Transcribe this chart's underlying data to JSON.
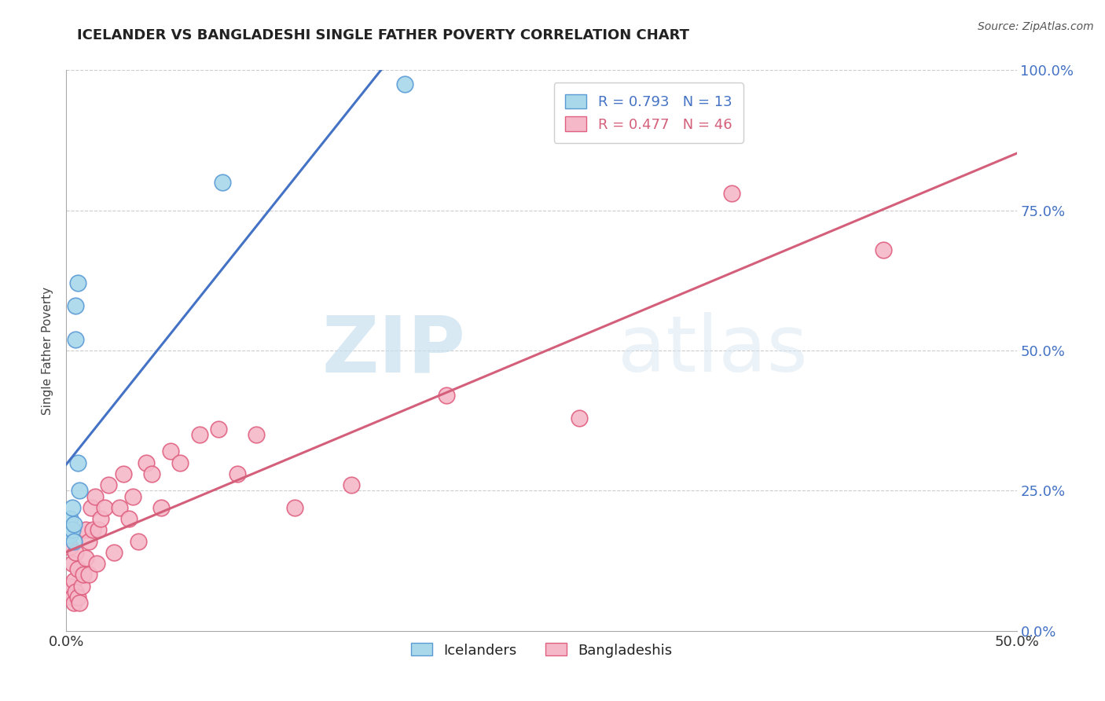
{
  "title": "ICELANDER VS BANGLADESHI SINGLE FATHER POVERTY CORRELATION CHART",
  "source": "Source: ZipAtlas.com",
  "ylabel": "Single Father Poverty",
  "xlim": [
    0.0,
    0.5
  ],
  "ylim": [
    0.0,
    1.0
  ],
  "xticks": [
    0.0,
    0.05,
    0.1,
    0.15,
    0.2,
    0.25,
    0.3,
    0.35,
    0.4,
    0.45,
    0.5
  ],
  "xtick_labels": [
    "0.0%",
    "",
    "",
    "",
    "",
    "",
    "",
    "",
    "",
    "",
    "50.0%"
  ],
  "ytick_labels": [
    "0.0%",
    "25.0%",
    "50.0%",
    "75.0%",
    "100.0%"
  ],
  "yticks": [
    0.0,
    0.25,
    0.5,
    0.75,
    1.0
  ],
  "icelander_color": "#a8d8ea",
  "bangladeshi_color": "#f4b8c8",
  "icelander_edge_color": "#5b9bd5",
  "bangladeshi_edge_color": "#e06080",
  "icelander_line_color": "#4472c4",
  "bangladeshi_line_color": "#d45f7a",
  "R_icelander": 0.793,
  "N_icelander": 13,
  "R_bangladeshi": 0.477,
  "N_bangladeshi": 46,
  "watermark_zip": "ZIP",
  "watermark_atlas": "atlas",
  "icelander_x": [
    0.002,
    0.002,
    0.003,
    0.003,
    0.004,
    0.004,
    0.005,
    0.005,
    0.006,
    0.006,
    0.007,
    0.082,
    0.178
  ],
  "icelander_y": [
    0.17,
    0.2,
    0.18,
    0.22,
    0.16,
    0.19,
    0.52,
    0.58,
    0.62,
    0.3,
    0.25,
    0.8,
    0.975
  ],
  "bangladeshi_x": [
    0.002,
    0.002,
    0.003,
    0.003,
    0.004,
    0.004,
    0.005,
    0.005,
    0.006,
    0.006,
    0.007,
    0.008,
    0.009,
    0.01,
    0.01,
    0.012,
    0.012,
    0.013,
    0.014,
    0.015,
    0.016,
    0.017,
    0.018,
    0.02,
    0.022,
    0.025,
    0.028,
    0.03,
    0.033,
    0.035,
    0.038,
    0.042,
    0.045,
    0.05,
    0.055,
    0.06,
    0.07,
    0.08,
    0.09,
    0.1,
    0.12,
    0.15,
    0.2,
    0.27,
    0.35,
    0.43
  ],
  "bangladeshi_y": [
    0.08,
    0.15,
    0.06,
    0.12,
    0.05,
    0.09,
    0.07,
    0.14,
    0.06,
    0.11,
    0.05,
    0.08,
    0.1,
    0.13,
    0.18,
    0.1,
    0.16,
    0.22,
    0.18,
    0.24,
    0.12,
    0.18,
    0.2,
    0.22,
    0.26,
    0.14,
    0.22,
    0.28,
    0.2,
    0.24,
    0.16,
    0.3,
    0.28,
    0.22,
    0.32,
    0.3,
    0.35,
    0.36,
    0.28,
    0.35,
    0.22,
    0.26,
    0.42,
    0.38,
    0.78,
    0.68
  ]
}
